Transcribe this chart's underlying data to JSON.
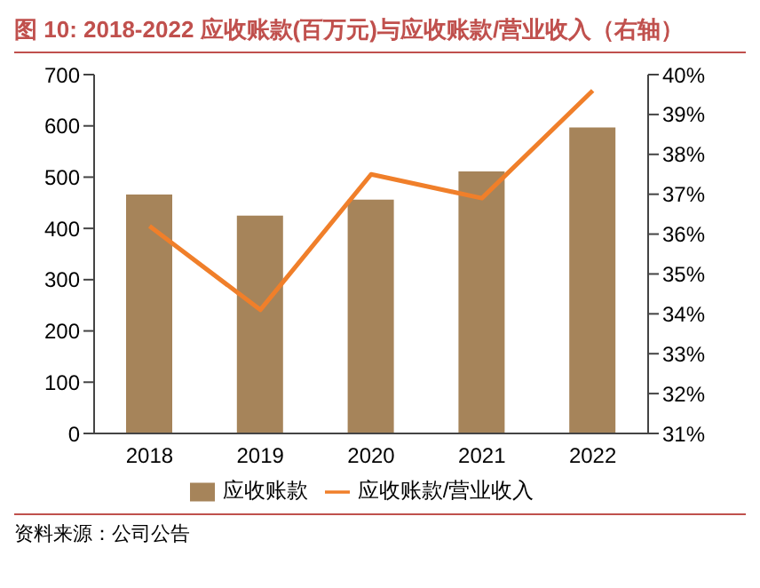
{
  "chart_data": {
    "type": "bar",
    "title": "图 10: 2018-2022 应收账款(百万元)与应收账款/营业收入（右轴）",
    "categories": [
      "2018",
      "2019",
      "2020",
      "2021",
      "2022"
    ],
    "series": [
      {
        "name": "应收账款",
        "color": "#a6845a",
        "values": [
          466,
          425,
          456,
          511,
          597
        ]
      },
      {
        "name": "应收账款/营业收入",
        "type": "line",
        "axis": "y2",
        "color": "#f07f2a",
        "values": [
          36.2,
          34.1,
          37.5,
          36.9,
          39.6
        ]
      }
    ],
    "ylim": [
      0,
      700
    ],
    "yticks": [
      0,
      100,
      200,
      300,
      400,
      500,
      600,
      700
    ],
    "y2lim": [
      31,
      40
    ],
    "y2ticks": [
      {
        "value": 31,
        "label": "31%"
      },
      {
        "value": 32,
        "label": "32%"
      },
      {
        "value": 33,
        "label": "33%"
      },
      {
        "value": 34,
        "label": "34%"
      },
      {
        "value": 35,
        "label": "35%"
      },
      {
        "value": 36,
        "label": "36%"
      },
      {
        "value": 37,
        "label": "37%"
      },
      {
        "value": 38,
        "label": "38%"
      },
      {
        "value": 39,
        "label": "39%"
      },
      {
        "value": 40,
        "label": "40%"
      }
    ],
    "grid": false,
    "legend": "bottom",
    "marker": "none",
    "annotations": [
      "资料来源：公司公告"
    ]
  }
}
